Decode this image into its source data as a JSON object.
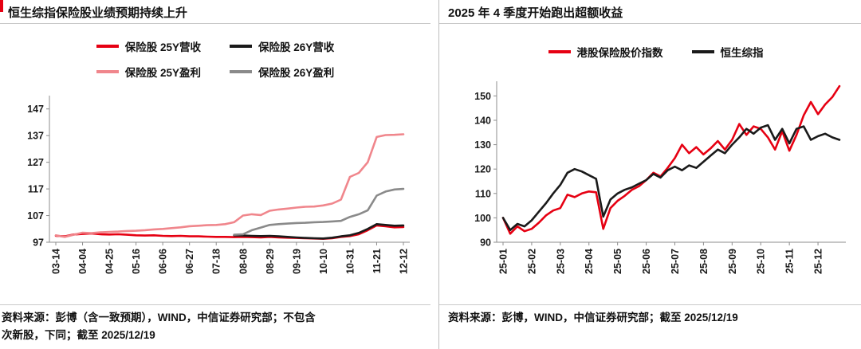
{
  "left_panel": {
    "title": "恒生综指保险股业绩预期持续上升",
    "source_line1": "资料来源：彭博（含一致预期），WIND，中信证券研究部；不包含",
    "source_line2": "次新股，下同；截至 2025/12/19"
  },
  "right_panel": {
    "title": "2025 年 4 季度开始跑出超额收益",
    "source_line1": "资料来源：彭博，WIND，中信证券研究部；截至 2025/12/19"
  },
  "colors": {
    "accent_red": "#e60012",
    "line_red": "#e60012",
    "line_black": "#1a1a1a",
    "line_pink": "#f0868c",
    "line_gray": "#8a8a8a",
    "axis": "#8c8c8c"
  },
  "chart_data": [
    {
      "type": "line",
      "title": "恒生综指保险股业绩预期持续上升",
      "x_labels": [
        "03-14",
        "04-04",
        "04-25",
        "05-16",
        "06-06",
        "06-27",
        "07-18",
        "08-08",
        "08-29",
        "09-19",
        "10-10",
        "10-31",
        "11-21",
        "12-12"
      ],
      "label_every": 3,
      "ylim": [
        97,
        152
      ],
      "yticks": [
        97,
        107,
        117,
        127,
        137,
        147
      ],
      "grid": false,
      "legend_position": "top",
      "legend_rows": [
        [
          0,
          1
        ],
        [
          2,
          3
        ]
      ],
      "series": [
        {
          "name": "保险股 25Y营收",
          "color": "#e60012",
          "values": [
            99.4,
            99.2,
            99.9,
            100.1,
            100.3,
            100.0,
            99.9,
            100.0,
            99.8,
            99.6,
            99.5,
            99.6,
            99.4,
            99.3,
            99.4,
            99.2,
            99.2,
            99.1,
            99.0,
            99.0,
            98.9,
            99.0,
            98.9,
            98.8,
            99.0,
            98.8,
            98.7,
            98.6,
            98.5,
            98.4,
            98.3,
            98.5,
            99.0,
            99.3,
            100.0,
            101.5,
            103.3,
            103.0,
            102.6,
            102.7
          ]
        },
        {
          "name": "保险股 26Y营收",
          "color": "#1a1a1a",
          "values": [
            null,
            null,
            null,
            null,
            null,
            null,
            null,
            null,
            null,
            null,
            null,
            null,
            null,
            null,
            null,
            null,
            null,
            null,
            null,
            null,
            99.6,
            99.5,
            99.4,
            99.3,
            99.4,
            99.2,
            99.0,
            98.8,
            98.6,
            98.5,
            98.4,
            98.7,
            99.2,
            99.6,
            100.5,
            102.0,
            103.8,
            103.5,
            103.2,
            103.3
          ]
        },
        {
          "name": "保险股 25Y盈利",
          "color": "#f0868c",
          "values": [
            99.6,
            99.0,
            99.8,
            100.6,
            100.4,
            100.7,
            100.9,
            101.0,
            101.2,
            101.3,
            101.5,
            101.8,
            102.0,
            102.3,
            102.6,
            103.0,
            103.2,
            103.4,
            103.5,
            103.8,
            104.5,
            107.0,
            107.5,
            107.2,
            108.8,
            109.3,
            109.6,
            110.0,
            110.3,
            110.4,
            110.8,
            111.5,
            113.0,
            121.5,
            123.0,
            127.0,
            136.5,
            137.2,
            137.3,
            137.5
          ]
        },
        {
          "name": "保险股 26Y盈利",
          "color": "#8a8a8a",
          "values": [
            null,
            null,
            null,
            null,
            null,
            null,
            null,
            null,
            null,
            null,
            null,
            null,
            null,
            null,
            null,
            null,
            null,
            null,
            null,
            null,
            99.8,
            100.0,
            101.5,
            102.5,
            103.5,
            103.8,
            104.0,
            104.2,
            104.3,
            104.5,
            104.6,
            104.8,
            105.0,
            106.5,
            107.5,
            109.0,
            114.5,
            116.0,
            116.8,
            117.0
          ]
        }
      ]
    },
    {
      "type": "line",
      "title": "2025 年 4 季度开始跑出超额收益",
      "x_labels": [
        "25-01",
        "25-02",
        "25-03",
        "25-04",
        "25-05",
        "25-06",
        "25-07",
        "25-08",
        "25-09",
        "25-10",
        "25-11",
        "25-12"
      ],
      "label_every": 4,
      "ylim": [
        90,
        156
      ],
      "yticks": [
        90,
        100,
        110,
        120,
        130,
        140,
        150
      ],
      "grid": false,
      "legend_position": "top",
      "legend_rows": [
        [
          0,
          1
        ]
      ],
      "series": [
        {
          "name": "港股保险股价指数",
          "color": "#e60012",
          "values": [
            100,
            93.5,
            96.5,
            94.5,
            95.5,
            98,
            101,
            103,
            104,
            109.5,
            108.5,
            110,
            110.8,
            110.5,
            95.5,
            104,
            107,
            109,
            111.5,
            113,
            115.5,
            118.5,
            117,
            120.5,
            124.5,
            130,
            126.5,
            129,
            126,
            128.5,
            131.5,
            128,
            132,
            138.5,
            134,
            137.5,
            136.5,
            133,
            128,
            135.5,
            127.5,
            134,
            142,
            147.5,
            142.5,
            146.5,
            149.5,
            154
          ]
        },
        {
          "name": "恒生综指",
          "color": "#1a1a1a",
          "values": [
            100,
            95,
            97.5,
            96.5,
            99,
            102.5,
            106,
            110,
            113.5,
            118.5,
            120,
            119,
            117.5,
            116,
            100.5,
            107.5,
            110,
            111.5,
            112.5,
            114,
            115.5,
            118,
            116.5,
            119.5,
            121,
            119.5,
            121.5,
            120.5,
            123,
            125.5,
            128,
            126.5,
            130,
            133,
            136.5,
            134.5,
            137,
            138,
            132,
            136.5,
            130.5,
            136.5,
            137.5,
            132,
            133.5,
            134.5,
            133,
            132
          ]
        }
      ]
    }
  ]
}
